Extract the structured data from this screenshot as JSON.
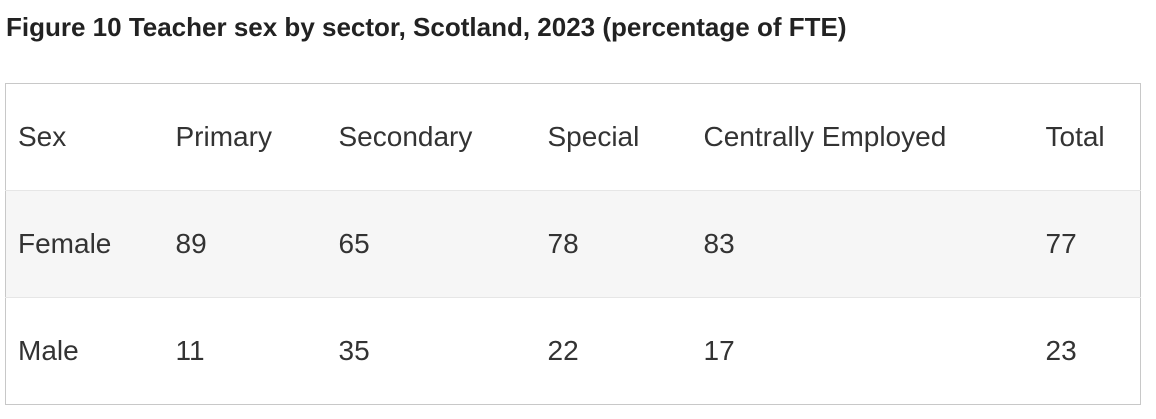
{
  "title": "Figure 10 Teacher sex by sector, Scotland, 2023 (percentage of FTE)",
  "table": {
    "header": [
      "Sex",
      "Primary",
      "Secondary",
      "Special",
      "Centrally Employed",
      "Total"
    ],
    "rows": [
      [
        "Female",
        89,
        65,
        78,
        83,
        77
      ],
      [
        "Male",
        11,
        35,
        22,
        17,
        23
      ]
    ]
  }
}
